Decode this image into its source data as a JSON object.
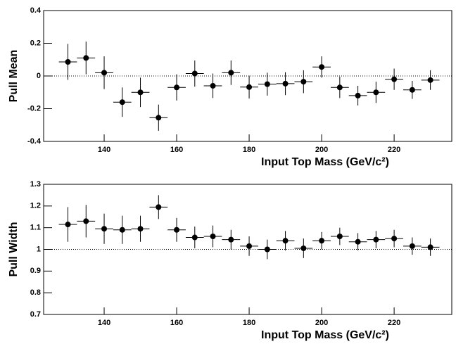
{
  "chart_data": [
    {
      "type": "errorbar",
      "ylabel": "Pull Mean",
      "xlabel": "Input Top Mass (GeV/c²)",
      "x": [
        130,
        135,
        140,
        145,
        150,
        155,
        160,
        165,
        170,
        175,
        180,
        185,
        190,
        195,
        200,
        205,
        210,
        215,
        220,
        225,
        230
      ],
      "values": [
        0.086,
        0.11,
        0.02,
        -0.16,
        -0.1,
        -0.255,
        -0.07,
        0.015,
        -0.06,
        0.02,
        -0.068,
        -0.05,
        -0.047,
        -0.035,
        0.055,
        -0.07,
        -0.12,
        -0.1,
        -0.02,
        -0.085,
        -0.025
      ],
      "errors": [
        0.11,
        0.1,
        0.1,
        0.09,
        0.09,
        0.08,
        0.08,
        0.08,
        0.075,
        0.075,
        0.07,
        0.07,
        0.07,
        0.07,
        0.065,
        0.065,
        0.06,
        0.065,
        0.065,
        0.055,
        0.06
      ],
      "xerr": 2.5,
      "color": "#000000",
      "hline": 0,
      "xlim": [
        123.3,
        235.9
      ],
      "xticks": [
        140,
        160,
        180,
        200,
        220
      ],
      "ylim": [
        -0.4,
        0.4
      ],
      "yticks": [
        -0.4,
        -0.2,
        0,
        0.2,
        0.4
      ]
    },
    {
      "type": "errorbar",
      "ylabel": "Pull Width",
      "xlabel": "Input Top Mass (GeV/c²)",
      "x": [
        130,
        135,
        140,
        145,
        150,
        155,
        160,
        165,
        170,
        175,
        180,
        185,
        190,
        195,
        200,
        205,
        210,
        215,
        220,
        225,
        230
      ],
      "values": [
        1.115,
        1.13,
        1.095,
        1.09,
        1.095,
        1.195,
        1.09,
        1.055,
        1.06,
        1.045,
        1.015,
        1.0,
        1.04,
        1.005,
        1.04,
        1.06,
        1.035,
        1.045,
        1.05,
        1.015,
        1.01
      ],
      "errors": [
        0.08,
        0.075,
        0.07,
        0.065,
        0.06,
        0.055,
        0.055,
        0.05,
        0.05,
        0.045,
        0.045,
        0.045,
        0.045,
        0.045,
        0.04,
        0.04,
        0.04,
        0.04,
        0.04,
        0.04,
        0.04
      ],
      "xerr": 2.5,
      "color": "#000000",
      "hline": 1,
      "xlim": [
        123.3,
        235.9
      ],
      "xticks": [
        140,
        160,
        180,
        200,
        220
      ],
      "ylim": [
        0.7,
        1.3
      ],
      "yticks": [
        0.7,
        0.8,
        0.9,
        1,
        1.1,
        1.2,
        1.3
      ]
    }
  ]
}
